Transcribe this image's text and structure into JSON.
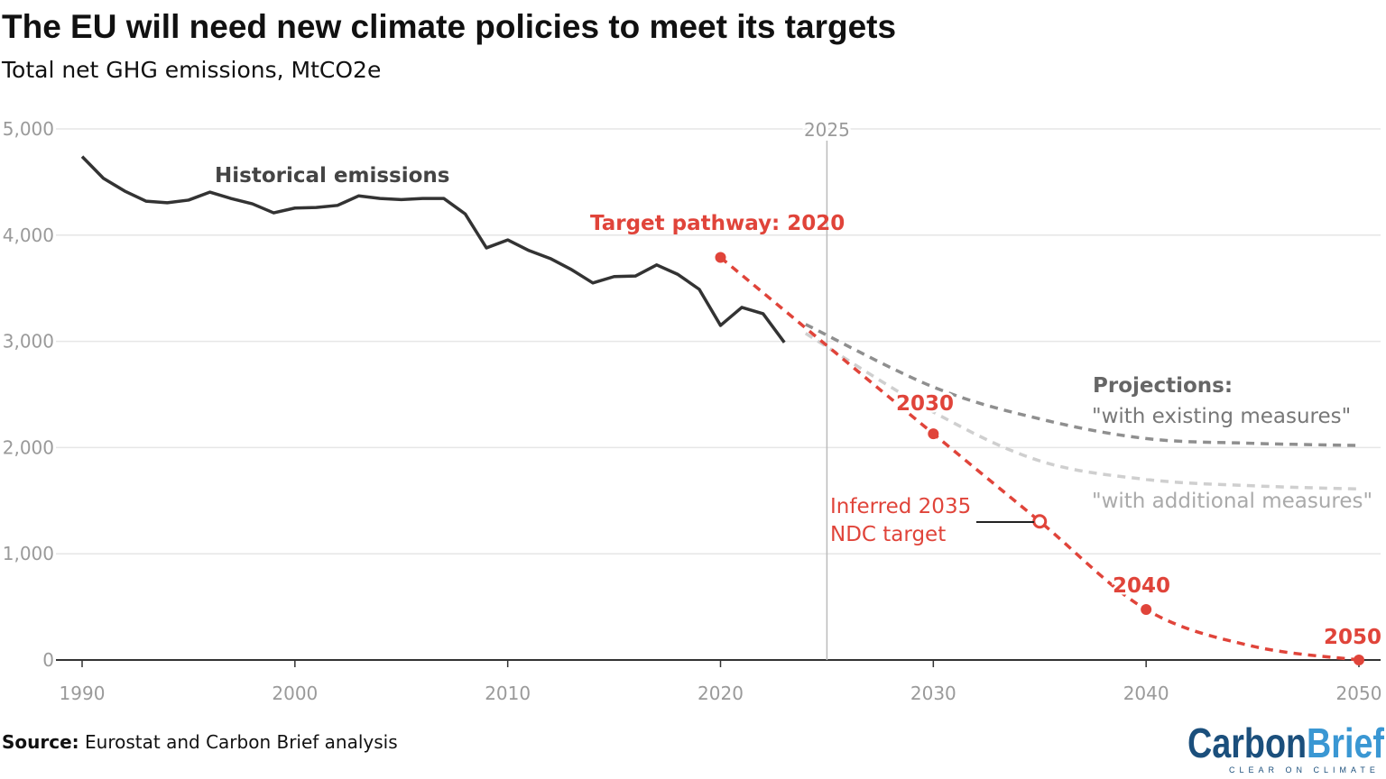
{
  "title": "The EU will need new climate policies to meet its targets",
  "subtitle": "Total net GHG emissions, MtCO2e",
  "source_label": "Source:",
  "source_text": " Eurostat and Carbon Brief analysis",
  "logo": {
    "part1": "Carbon",
    "part2": "Brief",
    "tagline": "CLEAR ON CLIMATE"
  },
  "colors": {
    "historical": "#333333",
    "target": "#e0443a",
    "wem": "#8f8f8f",
    "wam": "#cfcfcf",
    "grid": "#e6e6e6",
    "logo_dark": "#1b4f7c",
    "logo_light": "#3a97d3"
  },
  "chart_data": {
    "type": "line",
    "title": "The EU will need new climate policies to meet its targets",
    "ylabel": "Total net GHG emissions, MtCO2e",
    "xlim": [
      1990,
      2050
    ],
    "ylim": [
      0,
      5000
    ],
    "grid": true,
    "x_ticks": [
      "1990",
      "2000",
      "2010",
      "2020",
      "2030",
      "2040",
      "2050"
    ],
    "y_ticks": [
      "0",
      "1,000",
      "2,000",
      "3,000",
      "4,000",
      "5,000"
    ],
    "reference_line": {
      "x": 2025,
      "label": "2025"
    },
    "series": [
      {
        "name": "Historical emissions",
        "style": "solid",
        "x": [
          1990,
          1991,
          1992,
          1993,
          1994,
          1995,
          1996,
          1997,
          1998,
          1999,
          2000,
          2001,
          2002,
          2003,
          2004,
          2005,
          2006,
          2007,
          2008,
          2009,
          2010,
          2011,
          2012,
          2013,
          2014,
          2015,
          2016,
          2017,
          2018,
          2019,
          2020,
          2021,
          2022,
          2023
        ],
        "y": [
          4740,
          4535,
          4415,
          4320,
          4305,
          4330,
          4405,
          4345,
          4295,
          4210,
          4255,
          4260,
          4280,
          4370,
          4345,
          4335,
          4345,
          4345,
          4200,
          3880,
          3955,
          3855,
          3780,
          3675,
          3550,
          3610,
          3615,
          3720,
          3630,
          3490,
          3150,
          3320,
          3260,
          2990
        ]
      },
      {
        "name": "Target pathway: 2020",
        "style": "dashed",
        "x": [
          2020,
          2030,
          2035,
          2040,
          2045,
          2050
        ],
        "y": [
          3790,
          2130,
          1305,
          475,
          130,
          0
        ],
        "markers": [
          {
            "x": 2020,
            "y": 3790,
            "label": "",
            "filled": true
          },
          {
            "x": 2030,
            "y": 2130,
            "label": "2030",
            "filled": true
          },
          {
            "x": 2035,
            "y": 1305,
            "label": "Inferred 2035 NDC target",
            "filled": false
          },
          {
            "x": 2040,
            "y": 475,
            "label": "2040",
            "filled": true
          },
          {
            "x": 2050,
            "y": 0,
            "label": "2050",
            "filled": true
          }
        ]
      },
      {
        "name": "\"with existing measures\"",
        "style": "dashed",
        "x": [
          2024,
          2030,
          2035,
          2040,
          2045,
          2050
        ],
        "y": [
          3160,
          2570,
          2270,
          2085,
          2040,
          2020
        ]
      },
      {
        "name": "\"with additional measures\"",
        "style": "dashed",
        "x": [
          2024,
          2030,
          2035,
          2040,
          2045,
          2050
        ],
        "y": [
          3075,
          2335,
          1875,
          1700,
          1640,
          1610
        ]
      }
    ],
    "annotations": {
      "historical": "Historical emissions",
      "target": "Target pathway: 2020",
      "projections": "Projections:",
      "wem": "\"with existing measures\"",
      "wam": "\"with additional measures\"",
      "ndc_line1": "Inferred 2035",
      "ndc_line2": "NDC target",
      "m2030": "2030",
      "m2040": "2040",
      "m2050": "2050"
    }
  }
}
